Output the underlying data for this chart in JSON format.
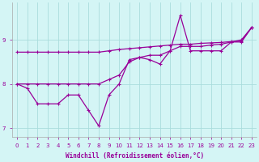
{
  "xlabel": "Windchill (Refroidissement éolien,°C)",
  "x": [
    0,
    1,
    2,
    3,
    4,
    5,
    6,
    7,
    8,
    9,
    10,
    11,
    12,
    13,
    14,
    15,
    16,
    17,
    18,
    19,
    20,
    21,
    22,
    23
  ],
  "line_upper": [
    8.72,
    8.72,
    8.72,
    8.72,
    8.72,
    8.72,
    8.72,
    8.72,
    8.72,
    8.75,
    8.78,
    8.8,
    8.82,
    8.84,
    8.86,
    8.88,
    8.9,
    8.9,
    8.92,
    8.93,
    8.94,
    8.96,
    8.97,
    9.28
  ],
  "line_data": [
    8.0,
    7.9,
    7.55,
    7.55,
    7.55,
    7.75,
    7.75,
    7.4,
    7.05,
    7.75,
    8.0,
    8.55,
    8.6,
    8.55,
    8.45,
    8.75,
    9.55,
    8.75,
    8.75,
    8.75,
    8.75,
    8.95,
    8.95,
    9.28
  ],
  "line_trend": [
    8.0,
    8.0,
    8.0,
    8.0,
    8.0,
    8.0,
    8.0,
    8.0,
    8.0,
    8.1,
    8.2,
    8.5,
    8.6,
    8.65,
    8.65,
    8.75,
    8.85,
    8.85,
    8.85,
    8.88,
    8.9,
    8.95,
    9.0,
    9.28
  ],
  "line_color": "#990099",
  "bg_color": "#d4f5f5",
  "grid_color": "#aadddd",
  "ylim": [
    6.8,
    9.85
  ],
  "yticks": [
    7,
    8,
    9
  ],
  "xticks": [
    0,
    1,
    2,
    3,
    4,
    5,
    6,
    7,
    8,
    9,
    10,
    11,
    12,
    13,
    14,
    15,
    16,
    17,
    18,
    19,
    20,
    21,
    22,
    23
  ]
}
